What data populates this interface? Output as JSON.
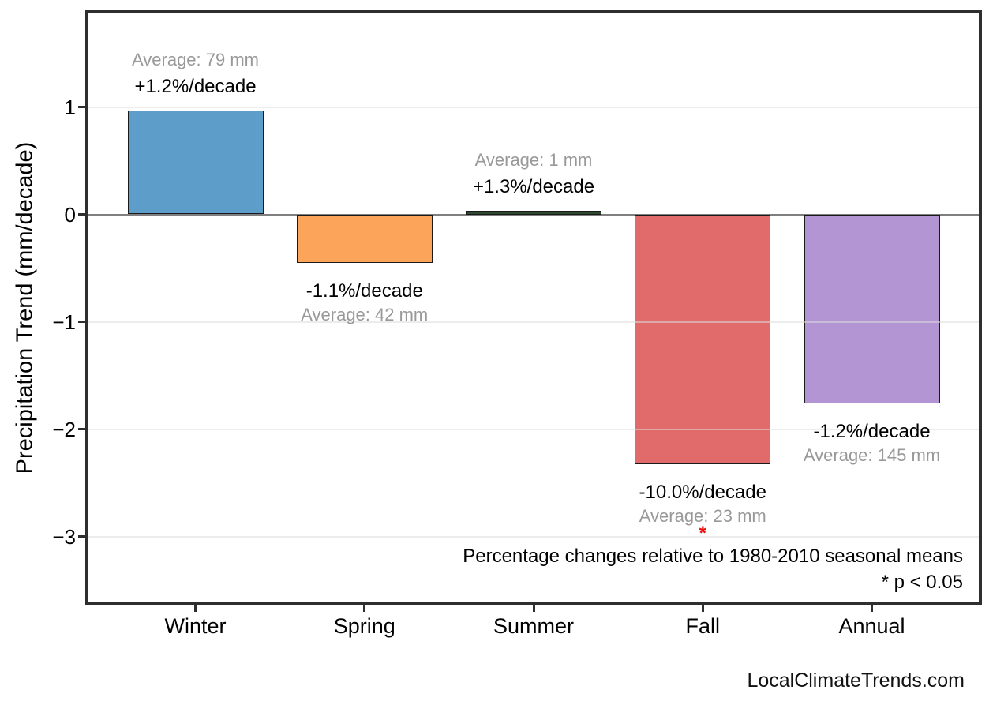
{
  "chart_data": {
    "type": "bar",
    "title": "",
    "xlabel": "",
    "ylabel": "Precipitation Trend (mm/decade)",
    "categories": [
      "Winter",
      "Spring",
      "Summer",
      "Fall",
      "Annual"
    ],
    "values": [
      0.97,
      -0.45,
      0.013,
      -2.33,
      -1.76
    ],
    "bar_colors": [
      "#5C9DCA",
      "#FCA45A",
      "#2E4A2E",
      "#E16A6B",
      "#B295D2"
    ],
    "bar_annotations": [
      {
        "pct": "+1.2%/decade",
        "avg": "Average: 79 mm",
        "side": "above",
        "significant": false
      },
      {
        "pct": "-1.1%/decade",
        "avg": "Average: 42 mm",
        "side": "below",
        "significant": false
      },
      {
        "pct": "+1.3%/decade",
        "avg": "Average: 1 mm",
        "side": "above",
        "significant": false
      },
      {
        "pct": "-10.0%/decade",
        "avg": "Average: 23 mm",
        "side": "below",
        "significant": true
      },
      {
        "pct": "-1.2%/decade",
        "avg": "Average: 145 mm",
        "side": "below",
        "significant": false
      }
    ],
    "yticks": [
      {
        "value": 1,
        "label": "1"
      },
      {
        "value": 0,
        "label": "0"
      },
      {
        "value": -1,
        "label": "−1"
      },
      {
        "value": -2,
        "label": "−2"
      },
      {
        "value": -3,
        "label": "−3"
      }
    ],
    "ylim": [
      -3.6,
      1.89
    ],
    "grid": true,
    "legend": "none",
    "significance_marker": "*",
    "annotations": [
      "Percentage changes relative to 1980-2010 seasonal means",
      "* p < 0.05"
    ],
    "watermark": "LocalClimateTrends.com",
    "colors": {
      "zero_line": "#7F7F7F",
      "grid_light": "#DCDCDC",
      "bar_edge": "#1A1A1A",
      "avg_text": "#999999",
      "pct_text": "#000000",
      "asterisk": "#EE0D0D",
      "spine": "#2E2E2E"
    }
  }
}
